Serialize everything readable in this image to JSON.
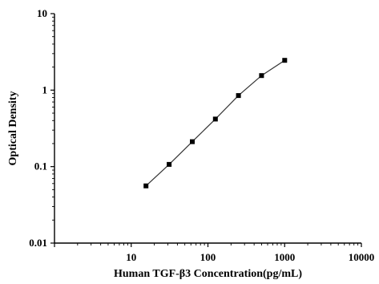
{
  "chart_data": {
    "type": "scatter",
    "title": "",
    "xlabel": "Human TGF-β3 Concentration(pg/mL)",
    "ylabel": "Optical Density",
    "xscale": "log",
    "yscale": "log",
    "xlim": [
      1,
      10000
    ],
    "ylim": [
      0.01,
      10
    ],
    "x_tick_labels": [
      "10",
      "100",
      "1000",
      "10000"
    ],
    "y_tick_labels": [
      "0.01",
      "0.1",
      "1",
      "10"
    ],
    "grid": false,
    "legend": "none",
    "series": [
      {
        "marker": "square",
        "line": "fitted curve",
        "color": "#000000",
        "x": [
          15.6,
          31.2,
          62.5,
          125,
          250,
          500,
          1000
        ],
        "y": [
          0.056,
          0.107,
          0.212,
          0.418,
          0.85,
          1.55,
          2.45
        ]
      }
    ]
  }
}
